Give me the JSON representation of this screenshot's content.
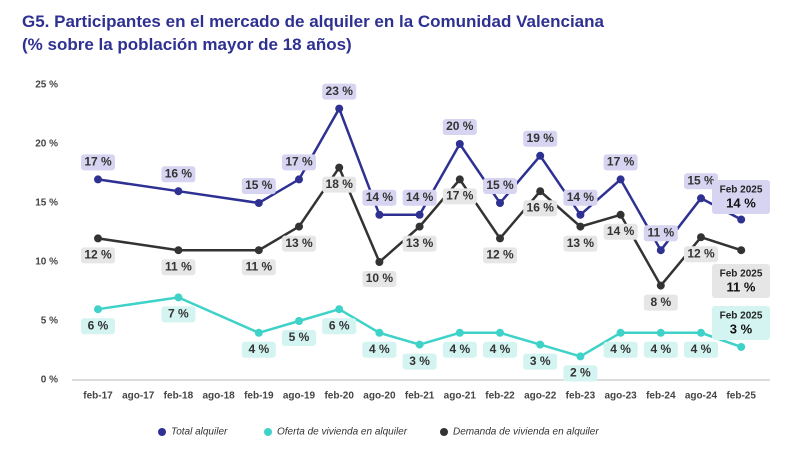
{
  "chart_data": {
    "type": "line",
    "title": "G5. Participantes en el mercado de alquiler en la Comunidad Valenciana",
    "subtitle": "(% sobre la población mayor de 18 años)",
    "categories": [
      "feb-17",
      "ago-17",
      "feb-18",
      "ago-18",
      "feb-19",
      "ago-19",
      "feb-20",
      "ago-20",
      "feb-21",
      "ago-21",
      "feb-22",
      "ago-22",
      "feb-23",
      "ago-23",
      "feb-24",
      "ago-24",
      "feb-25"
    ],
    "ylim": [
      0,
      25
    ],
    "yticks": [
      {
        "value": 0,
        "label": "0 %"
      },
      {
        "value": 5,
        "label": "5 %"
      },
      {
        "value": 10,
        "label": "10 %"
      },
      {
        "value": 15,
        "label": "15 %"
      },
      {
        "value": 20,
        "label": "20 %"
      },
      {
        "value": 25,
        "label": "25 %"
      }
    ],
    "grid": false,
    "legend": "bottom",
    "last_label": "Feb 2025",
    "series": [
      {
        "name": "Total alquiler",
        "color": "#2e3192",
        "values": [
          17,
          null,
          16,
          null,
          15,
          17,
          23,
          14,
          14,
          20,
          15,
          19,
          14,
          17,
          11,
          15.4,
          13.6
        ],
        "value_labels": [
          "17 %",
          null,
          "16 %",
          null,
          "15 %",
          "17 %",
          "23 %",
          "14 %",
          "14 %",
          "20 %",
          "15 %",
          "19 %",
          "14 %",
          "17 %",
          "11 %",
          "15 %",
          "14 %"
        ]
      },
      {
        "name": "Oferta de vivienda en alquiler",
        "color": "#3ed2c8",
        "values": [
          6,
          null,
          7,
          null,
          4,
          5,
          6,
          4,
          3,
          4,
          4,
          3,
          2,
          4,
          4,
          4,
          2.8
        ],
        "value_labels": [
          "6 %",
          null,
          "7 %",
          null,
          "4 %",
          "5 %",
          "6 %",
          "4 %",
          "3 %",
          "4 %",
          "4 %",
          "3 %",
          "2 %",
          "4 %",
          "4 %",
          "4 %",
          "3 %"
        ]
      },
      {
        "name": "Demanda de vivienda en alquiler",
        "color": "#333333",
        "values": [
          12,
          null,
          11,
          null,
          11,
          13,
          18,
          10,
          13,
          17,
          12,
          16,
          13,
          14,
          8,
          12.1,
          11
        ],
        "value_labels": [
          "12 %",
          null,
          "11 %",
          null,
          "11 %",
          "13 %",
          "18 %",
          "10 %",
          "13 %",
          "17 %",
          "12 %",
          "16 %",
          "13 %",
          "14 %",
          "8 %",
          "12 %",
          "11 %"
        ]
      }
    ]
  }
}
